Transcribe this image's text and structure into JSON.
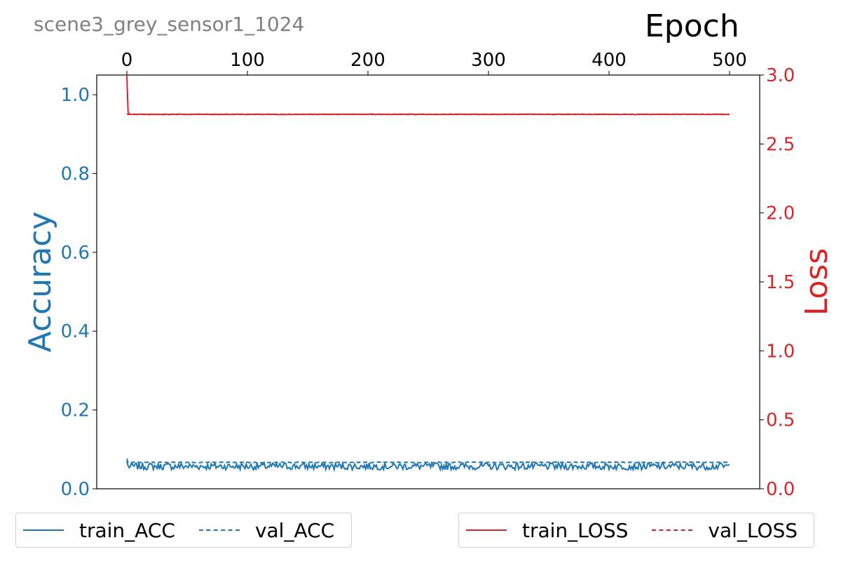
{
  "chart_data": {
    "type": "line",
    "title": "scene3_grey_sensor1_1024",
    "xlabel": "Epoch",
    "y1label": "Accuracy",
    "y2label": "Loss",
    "xlim": [
      -25,
      525
    ],
    "y1lim": [
      0.0,
      1.05
    ],
    "y2lim": [
      0.0,
      3.0
    ],
    "x_ticks": [
      0,
      100,
      200,
      300,
      400,
      500
    ],
    "y1_ticks": [
      "0.0",
      "0.2",
      "0.4",
      "0.6",
      "0.8",
      "1.0"
    ],
    "y2_ticks": [
      "0.0",
      "0.5",
      "1.0",
      "1.5",
      "2.0",
      "2.5",
      "3.0"
    ],
    "grid": false,
    "x_axis_position": "top",
    "epochs": 500,
    "colors": {
      "accuracy": "#1f77b4",
      "loss": "#d62728",
      "title": "#808080"
    },
    "series": [
      {
        "name": "train_ACC",
        "axis": "left",
        "style": "solid",
        "color": "#1f77b4",
        "start": 0.07,
        "mean": 0.057,
        "noise": 0.009
      },
      {
        "name": "val_ACC",
        "axis": "left",
        "style": "dashed",
        "color": "#1f77b4",
        "start": 0.076,
        "mean": 0.067,
        "noise": 0.001
      },
      {
        "name": "train_LOSS",
        "axis": "right",
        "style": "solid",
        "color": "#d62728",
        "start": 3.0,
        "mean": 2.715,
        "noise": 0.002
      },
      {
        "name": "val_LOSS",
        "axis": "right",
        "style": "dashed",
        "color": "#d62728",
        "start": 2.72,
        "mean": 2.715,
        "noise": 0.001
      }
    ],
    "legends": [
      {
        "placement": "bottom-left",
        "entries": [
          "train_ACC",
          "val_ACC"
        ]
      },
      {
        "placement": "bottom-right",
        "entries": [
          "train_LOSS",
          "val_LOSS"
        ]
      }
    ]
  }
}
